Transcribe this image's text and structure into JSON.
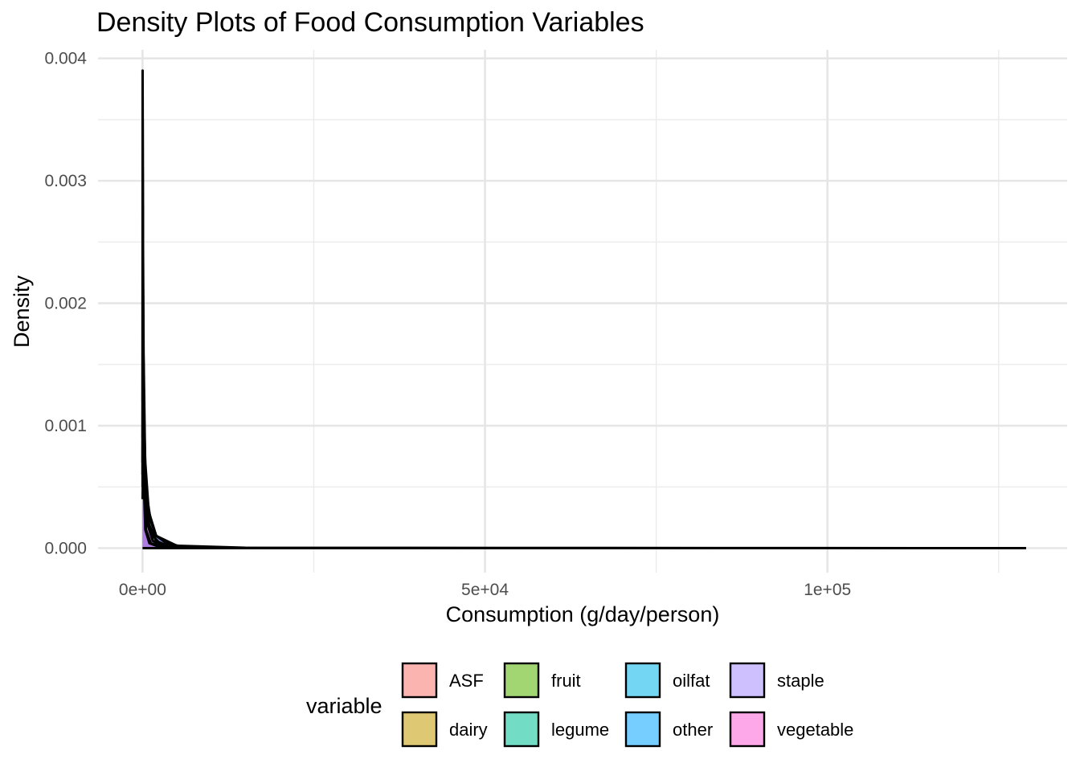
{
  "chart_data": {
    "type": "area",
    "title": "Density Plots of Food Consumption Variables",
    "xlabel": "Consumption (g/day/person)",
    "ylabel": "Density",
    "xlim": [
      -6500,
      135000
    ],
    "ylim": [
      -0.0002,
      0.00407
    ],
    "x_ticks": [
      {
        "value": 0,
        "label": "0e+00"
      },
      {
        "value": 50000,
        "label": "5e+04"
      },
      {
        "value": 100000,
        "label": "1e+05"
      }
    ],
    "x_minor_ticks": [
      25000,
      75000,
      125000
    ],
    "y_ticks": [
      {
        "value": 0,
        "label": "0.000"
      },
      {
        "value": 0.001,
        "label": "0.001"
      },
      {
        "value": 0.002,
        "label": "0.002"
      },
      {
        "value": 0.003,
        "label": "0.003"
      },
      {
        "value": 0.004,
        "label": "0.004"
      }
    ],
    "y_minor_ticks": [
      0.0005,
      0.0015,
      0.0025,
      0.0035
    ],
    "grid": true,
    "legend": {
      "title": "variable",
      "position": "bottom"
    },
    "series": [
      {
        "name": "ASF",
        "color": "#F8766D",
        "x": [
          0,
          30,
          120,
          300,
          600,
          1200,
          2500,
          5000,
          10000,
          20000
        ],
        "y": [
          0.0006,
          0.0022,
          0.0016,
          0.0008,
          0.0003,
          0.00012,
          4e-05,
          1e-05,
          2e-06,
          0
        ]
      },
      {
        "name": "dairy",
        "color": "#C49A00",
        "x": [
          0,
          20,
          80,
          250,
          600,
          1500,
          3000,
          8000
        ],
        "y": [
          0.0007,
          0.0035,
          0.0019,
          0.0007,
          0.00025,
          6e-05,
          1e-05,
          0
        ]
      },
      {
        "name": "fruit",
        "color": "#53B400",
        "x": [
          0,
          20,
          90,
          280,
          700,
          1500,
          4000,
          10000
        ],
        "y": [
          0.0007,
          0.0031,
          0.0018,
          0.0006,
          0.0002,
          6e-05,
          1e-05,
          0
        ]
      },
      {
        "name": "legume",
        "color": "#00C094",
        "x": [
          0,
          15,
          60,
          200,
          500,
          1200,
          3000,
          7000
        ],
        "y": [
          0.0009,
          0.0038,
          0.0017,
          0.0005,
          0.00015,
          4e-05,
          1e-05,
          0
        ]
      },
      {
        "name": "oilfat",
        "color": "#00B6EB",
        "x": [
          0,
          10,
          40,
          150,
          400,
          1000,
          2500,
          6000
        ],
        "y": [
          0.0012,
          0.0039,
          0.0021,
          0.0006,
          0.00015,
          4e-05,
          1e-05,
          0
        ]
      },
      {
        "name": "other",
        "color": "#06A4FF",
        "x": [
          0,
          30,
          150,
          400,
          900,
          2000,
          5000,
          15000,
          129000
        ],
        "y": [
          0.0006,
          0.0016,
          0.0012,
          0.0007,
          0.0003,
          0.0001,
          2e-05,
          3e-06,
          0
        ]
      },
      {
        "name": "staple",
        "color": "#A58AFF",
        "x": [
          0,
          100,
          300,
          700,
          1200,
          2000,
          3500,
          6000,
          12000
        ],
        "y": [
          0.0004,
          0.00075,
          0.0006,
          0.0004,
          0.00022,
          0.0001,
          4e-05,
          1e-05,
          0
        ]
      },
      {
        "name": "vegetable",
        "color": "#FB61D7",
        "x": [
          0,
          40,
          150,
          400,
          900,
          2000,
          4000,
          9000
        ],
        "y": [
          0.0005,
          0.0028,
          0.0016,
          0.0006,
          0.0002,
          6e-05,
          1e-05,
          0
        ]
      }
    ]
  }
}
